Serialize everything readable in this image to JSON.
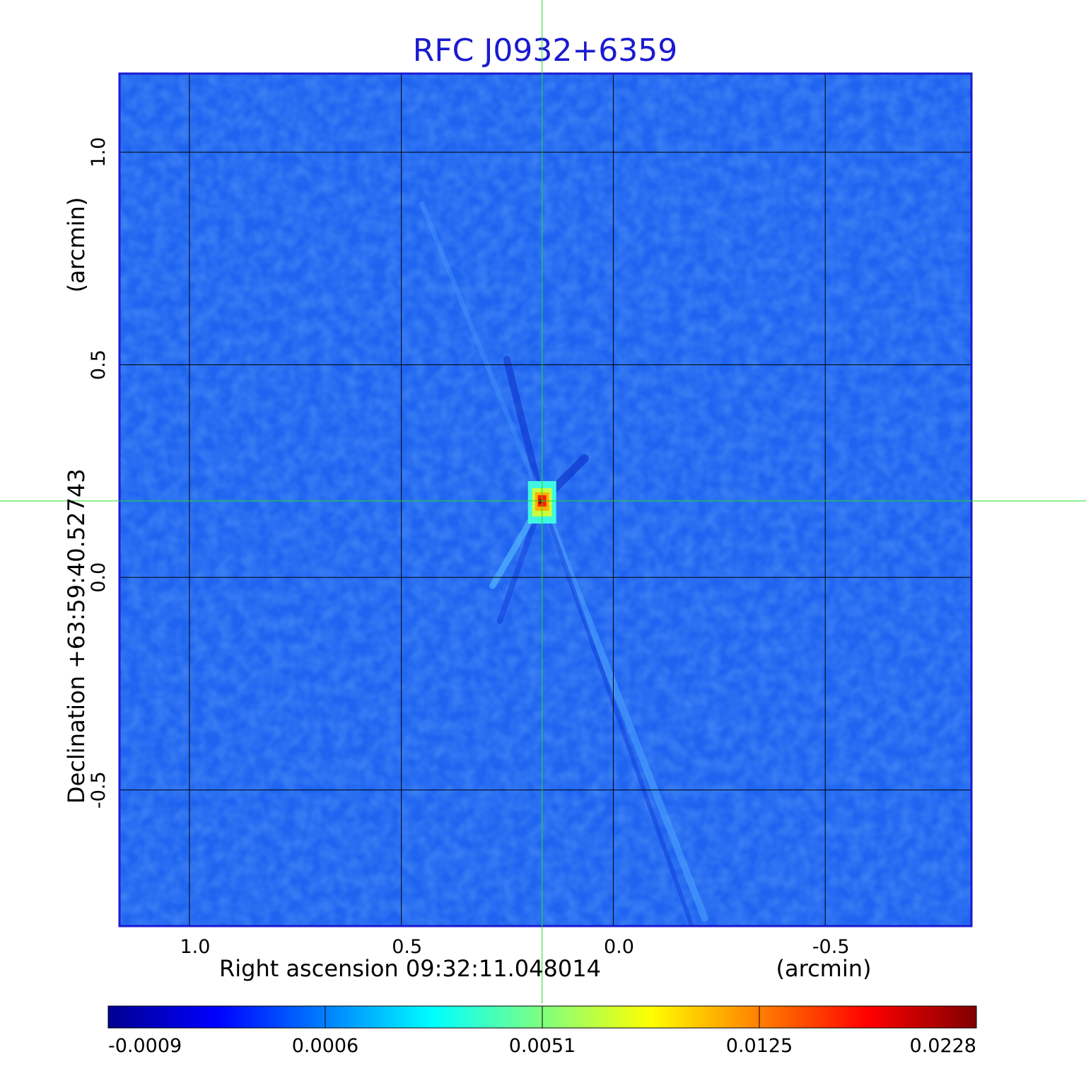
{
  "chart_data": {
    "type": "heatmap",
    "title": "RFC J0932+6359",
    "xlabel": "Right ascension  09:32:11.048014",
    "xunit": "(arcmin)",
    "ylabel": "Declination  +63:59:40.52743",
    "yunit": "(arcmin)",
    "x_ticks": [
      1.0,
      0.5,
      0.0,
      -0.5
    ],
    "x_tick_labels": [
      "1.0",
      "0.5",
      "0.0",
      "-0.5"
    ],
    "y_ticks": [
      1.0,
      0.5,
      0.0,
      -0.5
    ],
    "y_tick_labels": [
      "1.0",
      "0.5",
      "0.0",
      "-0.5"
    ],
    "xlim": [
      1.165,
      -0.845
    ],
    "ylim": [
      -0.82,
      1.185
    ],
    "grid": true,
    "crosshair": {
      "x": 0.168,
      "y": 0.18
    },
    "peak": {
      "x": 0.168,
      "y": 0.18,
      "value": 0.0228
    },
    "colorbar": {
      "colormap": "jet",
      "tick_labels": [
        "-0.0009",
        "0.0006",
        "0.0051",
        "0.0125",
        "0.0228"
      ],
      "min": -0.0009,
      "max": 0.0228
    },
    "colors": {
      "title": "#1a1ad0",
      "frame": "#1a1ad0",
      "crosshair": "#22dd22",
      "background_field": "#1f64f0"
    }
  }
}
